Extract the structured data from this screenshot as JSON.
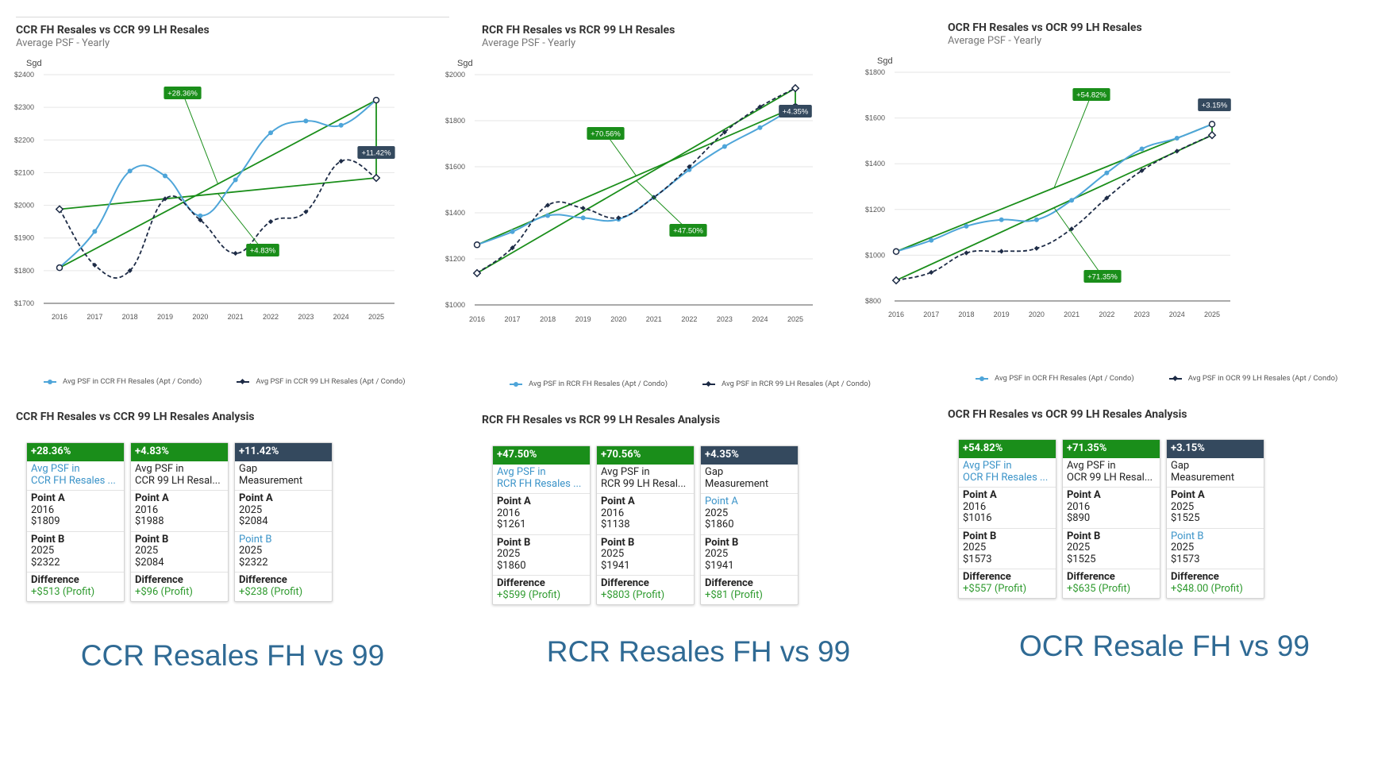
{
  "chart_data": [
    {
      "type": "line",
      "title": "CCR FH Resales vs CCR 99 LH Resales",
      "subtitle": "Average PSF - Yearly",
      "ylabel": "Sgd",
      "xlabel": "",
      "x": [
        "2016",
        "2017",
        "2018",
        "2019",
        "2020",
        "2021",
        "2022",
        "2023",
        "2024",
        "2025"
      ],
      "yticks": [
        "$1700",
        "$1800",
        "$1900",
        "$2000",
        "$2100",
        "$2200",
        "$2300",
        "$2400"
      ],
      "ylim": [
        1700,
        2400
      ],
      "series": [
        {
          "name": "Avg PSF in CCR FH Resales (Apt / Condo)",
          "values": [
            1809,
            1920,
            2105,
            2090,
            1968,
            2078,
            2222,
            2258,
            2245,
            2322
          ]
        },
        {
          "name": "Avg PSF in CCR 99 LH Resales (Apt / Condo)",
          "values": [
            1988,
            1817,
            1800,
            2020,
            1955,
            1853,
            1950,
            1980,
            2135,
            2084
          ]
        }
      ],
      "annotations": [
        {
          "label": "+28.36%",
          "style": "green"
        },
        {
          "label": "+4.83%",
          "style": "green"
        },
        {
          "label": "+11.42%",
          "style": "dark"
        }
      ],
      "legend": [
        "Avg PSF in CCR FH Resales (Apt / Condo)",
        "Avg PSF in CCR 99 LH Resales (Apt / Condo)"
      ]
    },
    {
      "type": "line",
      "title": "RCR FH Resales vs RCR 99 LH Resales",
      "subtitle": "Average PSF - Yearly",
      "ylabel": "Sgd",
      "xlabel": "",
      "x": [
        "2016",
        "2017",
        "2018",
        "2019",
        "2020",
        "2021",
        "2022",
        "2023",
        "2024",
        "2025"
      ],
      "yticks": [
        "$1000",
        "$1200",
        "$1400",
        "$1600",
        "$1800",
        "$2000"
      ],
      "ylim": [
        1000,
        2000
      ],
      "series": [
        {
          "name": "Avg PSF in RCR FH Resales (Apt / Condo)",
          "values": [
            1261,
            1318,
            1388,
            1378,
            1372,
            1467,
            1587,
            1688,
            1770,
            1860
          ]
        },
        {
          "name": "Avg PSF in RCR 99 LH Resales (Apt / Condo)",
          "values": [
            1138,
            1248,
            1433,
            1420,
            1378,
            1467,
            1600,
            1750,
            1860,
            1941
          ]
        }
      ],
      "annotations": [
        {
          "label": "+70.56%",
          "style": "green"
        },
        {
          "label": "+47.50%",
          "style": "green"
        },
        {
          "label": "+4.35%",
          "style": "dark"
        }
      ],
      "legend": [
        "Avg PSF in RCR FH Resales (Apt / Condo)",
        "Avg PSF in RCR 99 LH Resales (Apt / Condo)"
      ]
    },
    {
      "type": "line",
      "title": "OCR FH Resales vs OCR 99 LH Resales",
      "subtitle": "Average PSF - Yearly",
      "ylabel": "Sgd",
      "xlabel": "",
      "x": [
        "2016",
        "2017",
        "2018",
        "2019",
        "2020",
        "2021",
        "2022",
        "2023",
        "2024",
        "2025"
      ],
      "yticks": [
        "$800",
        "$1000",
        "$1200",
        "$1400",
        "$1600",
        "$1800"
      ],
      "ylim": [
        800,
        1800
      ],
      "series": [
        {
          "name": "Avg PSF in OCR FH Resales (Apt / Condo)",
          "values": [
            1016,
            1065,
            1127,
            1155,
            1155,
            1240,
            1360,
            1465,
            1512,
            1573
          ]
        },
        {
          "name": "Avg PSF in OCR 99 LH Resales (Apt / Condo)",
          "values": [
            890,
            925,
            1010,
            1017,
            1030,
            1115,
            1250,
            1370,
            1455,
            1525
          ]
        }
      ],
      "annotations": [
        {
          "label": "+54.82%",
          "style": "green"
        },
        {
          "label": "+71.35%",
          "style": "green"
        },
        {
          "label": "+3.15%",
          "style": "dark"
        }
      ],
      "legend": [
        "Avg PSF in OCR FH Resales (Apt / Condo)",
        "Avg PSF in OCR 99 LH Resales (Apt / Condo)"
      ]
    }
  ],
  "panels": [
    {
      "analysis_title": "CCR FH Resales vs CCR 99 LH Resales Analysis",
      "caption": "CCR Resales FH vs 99",
      "cards": [
        {
          "pct": "+28.36%",
          "color": "#1a8e1a",
          "name1": "Avg PSF in",
          "name2": "CCR FH Resales ...",
          "name_blue": true,
          "a_label": "Point A",
          "a_blue": false,
          "a_year": "2016",
          "a_val": "$1809",
          "b_label": "Point B",
          "b_blue": false,
          "b_year": "2025",
          "b_val": "$2322",
          "diff_label": "Difference",
          "diff_val": "+$513 (Profit)"
        },
        {
          "pct": "+4.83%",
          "color": "#1a8e1a",
          "name1": "Avg PSF in",
          "name2": "CCR 99 LH Resal...",
          "name_blue": false,
          "a_label": "Point A",
          "a_blue": false,
          "a_year": "2016",
          "a_val": "$1988",
          "b_label": "Point B",
          "b_blue": false,
          "b_year": "2025",
          "b_val": "$2084",
          "diff_label": "Difference",
          "diff_val": "+$96 (Profit)"
        },
        {
          "pct": "+11.42%",
          "color": "#34495e",
          "name1": "Gap",
          "name2": "Measurement",
          "name_blue": false,
          "a_label": "Point A",
          "a_blue": false,
          "a_year": "2025",
          "a_val": "$2084",
          "b_label": "Point B",
          "b_blue": true,
          "b_year": "2025",
          "b_val": "$2322",
          "diff_label": "Difference",
          "diff_val": "+$238 (Profit)"
        }
      ]
    },
    {
      "analysis_title": "RCR FH Resales vs RCR 99 LH Resales Analysis",
      "caption": "RCR Resales FH vs 99",
      "cards": [
        {
          "pct": "+47.50%",
          "color": "#1a8e1a",
          "name1": "Avg PSF in",
          "name2": "RCR FH Resales ...",
          "name_blue": true,
          "a_label": "Point A",
          "a_blue": false,
          "a_year": "2016",
          "a_val": "$1261",
          "b_label": "Point B",
          "b_blue": false,
          "b_year": "2025",
          "b_val": "$1860",
          "diff_label": "Difference",
          "diff_val": "+$599 (Profit)"
        },
        {
          "pct": "+70.56%",
          "color": "#1a8e1a",
          "name1": "Avg PSF in",
          "name2": "RCR 99 LH Resal...",
          "name_blue": false,
          "a_label": "Point A",
          "a_blue": false,
          "a_year": "2016",
          "a_val": "$1138",
          "b_label": "Point B",
          "b_blue": false,
          "b_year": "2025",
          "b_val": "$1941",
          "diff_label": "Difference",
          "diff_val": "+$803 (Profit)"
        },
        {
          "pct": "+4.35%",
          "color": "#34495e",
          "name1": "Gap",
          "name2": "Measurement",
          "name_blue": false,
          "a_label": "Point A",
          "a_blue": true,
          "a_year": "2025",
          "a_val": "$1860",
          "b_label": "Point B",
          "b_blue": false,
          "b_year": "2025",
          "b_val": "$1941",
          "diff_label": "Difference",
          "diff_val": "+$81 (Profit)"
        }
      ]
    },
    {
      "analysis_title": "OCR FH Resales vs OCR 99 LH Resales Analysis",
      "caption": "OCR Resale FH vs 99",
      "cards": [
        {
          "pct": "+54.82%",
          "color": "#1a8e1a",
          "name1": "Avg PSF in",
          "name2": "OCR FH Resales ...",
          "name_blue": true,
          "a_label": "Point A",
          "a_blue": false,
          "a_year": "2016",
          "a_val": "$1016",
          "b_label": "Point B",
          "b_blue": false,
          "b_year": "2025",
          "b_val": "$1573",
          "diff_label": "Difference",
          "diff_val": "+$557 (Profit)"
        },
        {
          "pct": "+71.35%",
          "color": "#1a8e1a",
          "name1": "Avg PSF in",
          "name2": "OCR 99 LH Resal...",
          "name_blue": false,
          "a_label": "Point A",
          "a_blue": false,
          "a_year": "2016",
          "a_val": "$890",
          "b_label": "Point B",
          "b_blue": false,
          "b_year": "2025",
          "b_val": "$1525",
          "diff_label": "Difference",
          "diff_val": "+$635 (Profit)"
        },
        {
          "pct": "+3.15%",
          "color": "#34495e",
          "name1": "Gap",
          "name2": "Measurement",
          "name_blue": false,
          "a_label": "Point A",
          "a_blue": false,
          "a_year": "2025",
          "a_val": "$1525",
          "b_label": "Point B",
          "b_blue": true,
          "b_year": "2025",
          "b_val": "$1573",
          "diff_label": "Difference",
          "diff_val": "+$48.00 (Profit)"
        }
      ]
    }
  ],
  "colors": {
    "fh": "#4ea5d9",
    "lh": "#1d2b46",
    "trend": "#1a8e1a",
    "gap": "#34495e",
    "caption": "#2f6a94"
  }
}
